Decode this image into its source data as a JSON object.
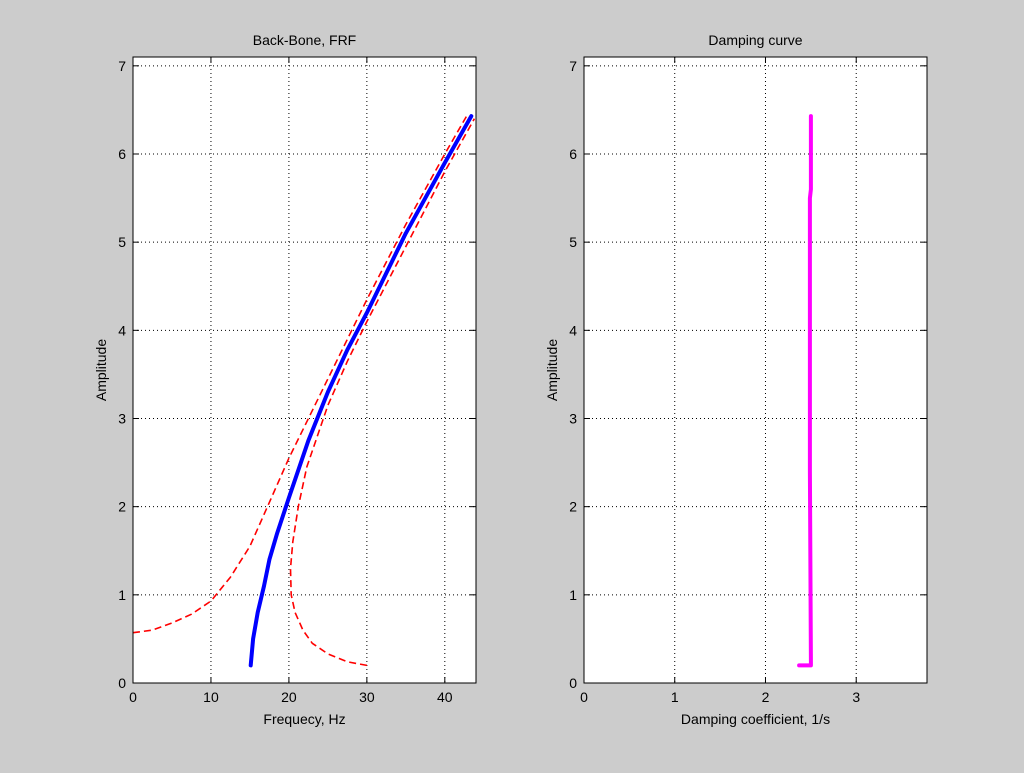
{
  "figure": {
    "background": "#cccccc"
  },
  "chart_data": [
    {
      "type": "line",
      "title": "Back-Bone, FRF",
      "xlabel": "Frequecy,  Hz",
      "ylabel": "Amplitude",
      "xlim": [
        0,
        44
      ],
      "ylim": [
        0,
        7.1
      ],
      "xticks": [
        0,
        10,
        20,
        30,
        40
      ],
      "yticks": [
        0,
        1,
        2,
        3,
        4,
        5,
        6,
        7
      ],
      "grid": true,
      "legend": null,
      "series": [
        {
          "name": "backbone",
          "color": "#0000ff",
          "style": "solid",
          "width": 4,
          "x": [
            15.1,
            15.4,
            16.0,
            16.8,
            17.5,
            18.5,
            20.0,
            22.5,
            25.0,
            27.5,
            30.0,
            35.0,
            40.0,
            43.4
          ],
          "y": [
            0.2,
            0.5,
            0.8,
            1.1,
            1.4,
            1.7,
            2.1,
            2.75,
            3.3,
            3.78,
            4.2,
            5.1,
            5.9,
            6.43
          ]
        },
        {
          "name": "frf-upper",
          "color": "#ff0000",
          "style": "dashed",
          "width": 1.6,
          "x": [
            0,
            2.5,
            5,
            7.5,
            10,
            12.5,
            15,
            17.5,
            20,
            22.5,
            25,
            30,
            35,
            40,
            42.8
          ],
          "y": [
            0.57,
            0.6,
            0.68,
            0.78,
            0.93,
            1.2,
            1.55,
            2.05,
            2.55,
            3.0,
            3.45,
            4.35,
            5.2,
            6.0,
            6.43
          ]
        },
        {
          "name": "frf-lower",
          "color": "#ff0000",
          "style": "dashed",
          "width": 1.6,
          "x": [
            30,
            27.5,
            25,
            23,
            21.8,
            20.8,
            20.3,
            20.2,
            20.5,
            21.2,
            22.3,
            25,
            27.5,
            30,
            35,
            40,
            43.8
          ],
          "y": [
            0.2,
            0.24,
            0.33,
            0.45,
            0.6,
            0.8,
            1.0,
            1.3,
            1.6,
            2.0,
            2.45,
            3.15,
            3.65,
            4.1,
            4.95,
            5.8,
            6.4
          ]
        }
      ]
    },
    {
      "type": "line",
      "title": "Damping curve",
      "xlabel": "Damping coefficient,  1/s",
      "ylabel": "Amplitude",
      "xlim": [
        0,
        3.78
      ],
      "ylim": [
        0,
        7.1
      ],
      "xticks": [
        0,
        1,
        2,
        3
      ],
      "yticks": [
        0,
        1,
        2,
        3,
        4,
        5,
        6,
        7
      ],
      "grid": true,
      "legend": null,
      "series": [
        {
          "name": "damping",
          "color": "#ff00ff",
          "style": "solid",
          "width": 4,
          "x": [
            2.37,
            2.5,
            2.5,
            2.49,
            2.49,
            2.5,
            2.5
          ],
          "y": [
            0.2,
            0.2,
            0.25,
            2.4,
            5.5,
            5.6,
            6.43
          ]
        }
      ]
    }
  ]
}
